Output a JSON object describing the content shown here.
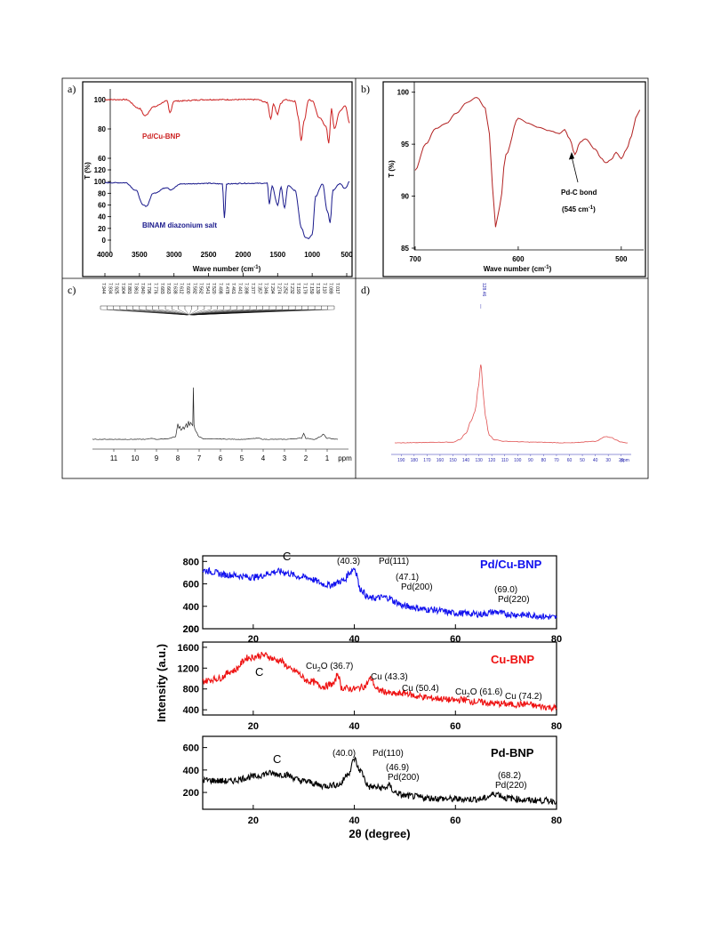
{
  "figure_top": {
    "panel_a": {
      "letter": "a)",
      "ylabel": "T (%)",
      "xlabel": "Wave number (cm",
      "xlabel_sup": "-1",
      "xlabel_end": ")",
      "upper_label": "Pd/Cu-BNP",
      "lower_label": "BINAM diazonium salt",
      "upper_color": "#cc2222",
      "lower_color": "#1a1a8c"
    },
    "panel_b": {
      "letter": "b)",
      "ylabel": "T (%)",
      "xlabel": "Wave number (cm",
      "xlabel_sup": "-1",
      "xlabel_end": ")",
      "annotation_line1": "Pd-C bond",
      "annotation_line2": "(545 cm",
      "annotation_sup": "-1",
      "annotation_end": ")",
      "color": "#b22222"
    },
    "panel_c": {
      "letter": "c)",
      "x_unit": "ppm",
      "peak_labels": [
        "7.944",
        "7.934",
        "7.925",
        "7.904",
        "7.881",
        "7.861",
        "7.840",
        "7.796",
        "7.776",
        "7.683",
        "7.663",
        "7.638",
        "7.612",
        "7.600",
        "7.582",
        "7.562",
        "7.541",
        "7.520",
        "7.498",
        "7.478",
        "7.461",
        "7.441",
        "7.398",
        "7.377",
        "7.357",
        "7.346",
        "7.294",
        "7.274",
        "7.252",
        "7.232",
        "7.193",
        "7.179",
        "7.159",
        "7.139",
        "7.110",
        "7.089",
        "7.017"
      ]
    },
    "panel_d": {
      "letter": "d)",
      "x_unit": "ppm",
      "peak_label": "128.46",
      "color": "#e05050"
    }
  },
  "chart_data": [
    {
      "type": "line",
      "panel": "a",
      "xlabel": "Wave number (cm-1)",
      "ylabel": "T (%)",
      "xlim": [
        4000,
        400
      ],
      "x_ticks": [
        4000,
        3500,
        3000,
        2500,
        2000,
        1500,
        1000,
        500
      ],
      "y_ticks_upper": [
        60,
        80,
        100
      ],
      "y_ticks_lower": [
        0,
        20,
        40,
        60,
        80,
        100,
        120
      ],
      "series": [
        {
          "name": "Pd/Cu-BNP",
          "x": [
            4000,
            3700,
            3500,
            3420,
            3300,
            3100,
            3060,
            3000,
            2500,
            2000,
            1800,
            1650,
            1600,
            1560,
            1500,
            1460,
            1400,
            1250,
            1200,
            1160,
            1120,
            1050,
            1000,
            900,
            800,
            760,
            720,
            680,
            600,
            520,
            460
          ],
          "y": [
            100,
            100,
            94,
            89,
            95,
            99,
            91,
            99,
            100,
            100,
            100,
            98,
            87,
            97,
            90,
            97,
            100,
            99,
            88,
            72,
            85,
            100,
            99,
            88,
            82,
            70,
            94,
            80,
            92,
            96,
            84
          ]
        },
        {
          "name": "BINAM diazonium salt",
          "x": [
            4000,
            3700,
            3550,
            3450,
            3400,
            3300,
            3100,
            3050,
            2900,
            2500,
            2300,
            2270,
            2240,
            2000,
            1650,
            1620,
            1580,
            1500,
            1450,
            1400,
            1350,
            1250,
            1150,
            1100,
            1050,
            1000,
            950,
            850,
            780,
            740,
            700,
            600,
            520,
            460
          ],
          "y": [
            98,
            98,
            85,
            60,
            58,
            80,
            90,
            86,
            96,
            97,
            96,
            38,
            96,
            97,
            97,
            62,
            92,
            60,
            90,
            55,
            93,
            85,
            20,
            5,
            3,
            10,
            75,
            96,
            50,
            30,
            85,
            96,
            88,
            100
          ]
        }
      ]
    },
    {
      "type": "line",
      "panel": "b",
      "xlabel": "Wave number (cm-1)",
      "ylabel": "T (%)",
      "xlim": [
        700,
        480
      ],
      "ylim": [
        85,
        101
      ],
      "x_ticks": [
        700,
        600,
        500
      ],
      "y_ticks": [
        85,
        90,
        95,
        100
      ],
      "series": [
        {
          "name": "",
          "x": [
            700,
            690,
            680,
            670,
            660,
            650,
            640,
            632,
            628,
            625,
            622,
            618,
            612,
            600,
            590,
            580,
            570,
            560,
            555,
            550,
            545,
            540,
            535,
            525,
            520,
            515,
            510,
            505,
            500,
            495,
            490,
            486,
            482
          ],
          "y": [
            92.5,
            95,
            96.5,
            97,
            98,
            99,
            99.5,
            98.5,
            96,
            91,
            87,
            89,
            94,
            97.5,
            97,
            96.6,
            96.3,
            96,
            96.4,
            95.5,
            94,
            95.2,
            95.5,
            94.5,
            93.7,
            93.2,
            93.5,
            94.2,
            93.6,
            94.5,
            95.8,
            97.5,
            98.3
          ]
        }
      ]
    },
    {
      "type": "line",
      "panel": "c",
      "xlabel": "ppm",
      "ylabel": "",
      "xlim": [
        12,
        0
      ],
      "x_ticks": [
        11,
        10,
        9,
        8,
        7,
        6,
        5,
        4,
        3,
        2,
        1
      ],
      "series": [
        {
          "name": "",
          "x": [
            12,
            9.5,
            9.2,
            9.0,
            8.5,
            8.1,
            8.0,
            7.95,
            7.9,
            7.85,
            7.8,
            7.75,
            7.7,
            7.6,
            7.55,
            7.5,
            7.45,
            7.4,
            7.3,
            7.27,
            7.24,
            7.2,
            7.15,
            7.0,
            6.8,
            5.0,
            4.2,
            4.0,
            3.0,
            2.2,
            2.1,
            2.0,
            1.6,
            1.3,
            1.2,
            1.0,
            0.5
          ],
          "y": [
            0,
            0,
            0.02,
            0,
            0.01,
            0.05,
            0.3,
            0.22,
            0.25,
            0.18,
            0.2,
            0.24,
            0.2,
            0.3,
            0.22,
            0.35,
            0.27,
            0.33,
            0.26,
            1.0,
            0.28,
            0.2,
            0.15,
            0.05,
            0.01,
            0,
            0.02,
            0,
            0,
            0.02,
            0.12,
            0.02,
            0,
            0.05,
            0.1,
            0.02,
            0
          ]
        }
      ]
    },
    {
      "type": "line",
      "panel": "d",
      "xlabel": "ppm",
      "ylabel": "",
      "xlim": [
        195,
        15
      ],
      "x_ticks": [
        190,
        180,
        170,
        160,
        150,
        140,
        130,
        120,
        110,
        100,
        90,
        80,
        70,
        60,
        50,
        40,
        30,
        20
      ],
      "series": [
        {
          "name": "",
          "x": [
            195,
            150,
            145,
            140,
            136,
            133,
            130,
            129,
            128.5,
            128,
            127,
            125,
            122,
            118,
            110,
            90,
            60,
            40,
            32,
            28,
            24,
            20,
            15
          ],
          "y": [
            0,
            0.01,
            0.04,
            0.12,
            0.28,
            0.4,
            0.75,
            0.95,
            1.0,
            0.96,
            0.7,
            0.35,
            0.1,
            0.04,
            0.02,
            0.01,
            0,
            0.02,
            0.08,
            0.07,
            0.04,
            0.01,
            0
          ]
        }
      ]
    },
    {
      "type": "line",
      "panel": "xrd",
      "xlabel": "2θ (degree)",
      "ylabel": "Intensity (a.u.)",
      "xlim": [
        10,
        80
      ],
      "x_ticks": [
        20,
        40,
        60,
        80
      ],
      "series": [
        {
          "name": "Pd/Cu-BNP",
          "color": "#1010ee",
          "ylim": [
            200,
            850
          ],
          "y_ticks": [
            200,
            400,
            600,
            800
          ],
          "x": [
            10,
            15,
            20,
            25,
            30,
            35,
            38,
            39,
            40,
            40.5,
            41,
            43,
            46,
            47,
            48,
            50,
            55,
            60,
            65,
            68,
            70,
            75,
            80
          ],
          "y": [
            720,
            680,
            660,
            710,
            660,
            590,
            630,
            700,
            740,
            690,
            560,
            470,
            480,
            475,
            440,
            400,
            370,
            340,
            330,
            350,
            330,
            320,
            300
          ]
        },
        {
          "name": "Cu-BNP",
          "color": "#ee1010",
          "ylim": [
            300,
            1700
          ],
          "y_ticks": [
            400,
            800,
            1200,
            1600
          ],
          "x": [
            10,
            13,
            16,
            19,
            22,
            25,
            28,
            31,
            34,
            36,
            36.7,
            37.5,
            40,
            42,
            43.3,
            44.5,
            48,
            50.4,
            52,
            56,
            60,
            61.6,
            63,
            68,
            72,
            74.2,
            76,
            80
          ],
          "y": [
            950,
            1000,
            1150,
            1400,
            1450,
            1350,
            1150,
            950,
            850,
            900,
            1100,
            820,
            800,
            850,
            1000,
            780,
            700,
            720,
            660,
            620,
            580,
            600,
            560,
            520,
            500,
            510,
            470,
            440
          ]
        },
        {
          "name": "Pd-BNP",
          "color": "#000000",
          "ylim": [
            50,
            700
          ],
          "y_ticks": [
            200,
            400,
            600
          ],
          "x": [
            10,
            15,
            20,
            23,
            26,
            30,
            34,
            37,
            39,
            40,
            41,
            43,
            46,
            46.9,
            48,
            50,
            55,
            60,
            65,
            68.2,
            70,
            75,
            80
          ],
          "y": [
            310,
            300,
            340,
            370,
            360,
            300,
            260,
            270,
            380,
            500,
            400,
            250,
            240,
            260,
            200,
            170,
            150,
            140,
            140,
            190,
            150,
            130,
            125
          ]
        }
      ],
      "annotations": [
        {
          "text": "C",
          "series": "Pd/Cu-BNP"
        },
        {
          "text": "(40.3)",
          "series": "Pd/Cu-BNP"
        },
        {
          "text": "Pd(111)",
          "series": "Pd/Cu-BNP"
        },
        {
          "text": "(47.1)",
          "series": "Pd/Cu-BNP"
        },
        {
          "text": "Pd(200)",
          "series": "Pd/Cu-BNP"
        },
        {
          "text": "(69.0)",
          "series": "Pd/Cu-BNP"
        },
        {
          "text": "Pd(220)",
          "series": "Pd/Cu-BNP"
        },
        {
          "text": "C",
          "series": "Cu-BNP"
        },
        {
          "text": "Cu2O (36.7)",
          "series": "Cu-BNP"
        },
        {
          "text": "Cu (43.3)",
          "series": "Cu-BNP"
        },
        {
          "text": "Cu (50.4)",
          "series": "Cu-BNP"
        },
        {
          "text": "Cu2O (61.6)",
          "series": "Cu-BNP"
        },
        {
          "text": "Cu (74.2)",
          "series": "Cu-BNP"
        },
        {
          "text": "C",
          "series": "Pd-BNP"
        },
        {
          "text": "(40.0)",
          "series": "Pd-BNP"
        },
        {
          "text": "Pd(110)",
          "series": "Pd-BNP"
        },
        {
          "text": "(46.9)",
          "series": "Pd-BNP"
        },
        {
          "text": "Pd(200)",
          "series": "Pd-BNP"
        },
        {
          "text": "(68.2)",
          "series": "Pd-BNP"
        },
        {
          "text": "Pd(220)",
          "series": "Pd-BNP"
        }
      ]
    }
  ],
  "xrd_titles": {
    "pdcu": "Pd/Cu-BNP",
    "cu": "Cu-BNP",
    "pd": "Pd-BNP",
    "ylabel": "Intensity (a.u.)",
    "xlabel": "2θ (degree)"
  }
}
